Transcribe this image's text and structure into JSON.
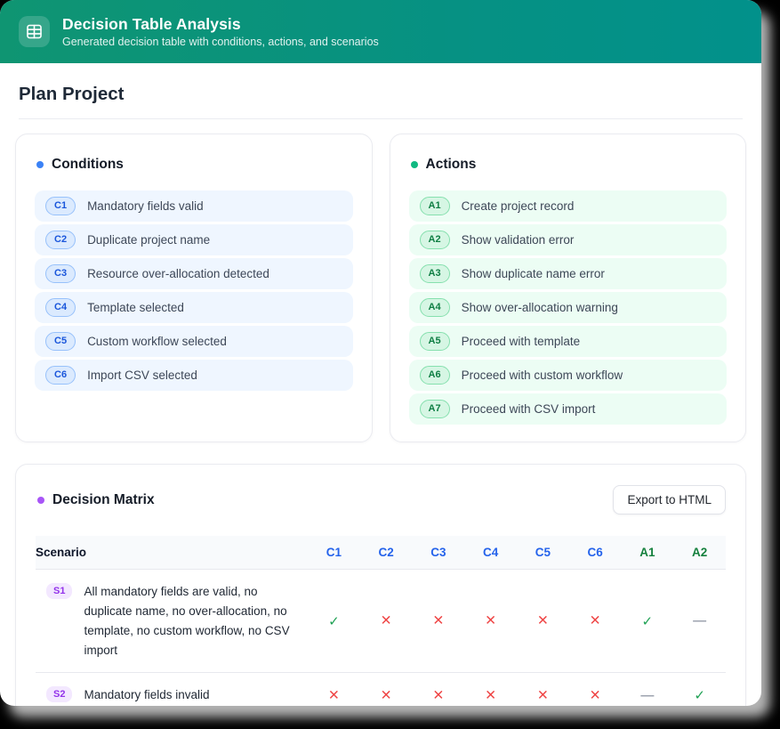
{
  "header": {
    "title": "Decision Table Analysis",
    "subtitle": "Generated decision table with conditions, actions, and scenarios"
  },
  "page_title": "Plan Project",
  "conditions": {
    "title": "Conditions",
    "items": [
      {
        "id": "C1",
        "label": "Mandatory fields valid"
      },
      {
        "id": "C2",
        "label": "Duplicate project name"
      },
      {
        "id": "C3",
        "label": "Resource over-allocation detected"
      },
      {
        "id": "C4",
        "label": "Template selected"
      },
      {
        "id": "C5",
        "label": "Custom workflow selected"
      },
      {
        "id": "C6",
        "label": "Import CSV selected"
      }
    ]
  },
  "actions": {
    "title": "Actions",
    "items": [
      {
        "id": "A1",
        "label": "Create project record"
      },
      {
        "id": "A2",
        "label": "Show validation error"
      },
      {
        "id": "A3",
        "label": "Show duplicate name error"
      },
      {
        "id": "A4",
        "label": "Show over-allocation warning"
      },
      {
        "id": "A5",
        "label": "Proceed with template"
      },
      {
        "id": "A6",
        "label": "Proceed with custom workflow"
      },
      {
        "id": "A7",
        "label": "Proceed with CSV import"
      }
    ]
  },
  "matrix": {
    "title": "Decision Matrix",
    "export_button": "Export to HTML",
    "columns": [
      "Scenario",
      "C1",
      "C2",
      "C3",
      "C4",
      "C5",
      "C6",
      "A1",
      "A2"
    ],
    "rows": [
      {
        "id": "S1",
        "label": "All mandatory fields are valid, no duplicate name, no over-allocation, no template, no custom workflow, no CSV import",
        "values": [
          "check",
          "cross",
          "cross",
          "cross",
          "cross",
          "cross",
          "check",
          "dash"
        ]
      },
      {
        "id": "S2",
        "label": "Mandatory fields invalid",
        "values": [
          "cross",
          "cross",
          "cross",
          "cross",
          "cross",
          "cross",
          "dash",
          "check"
        ]
      }
    ]
  },
  "symbols": {
    "check": "✓",
    "cross": "✕",
    "dash": "—"
  },
  "colors": {
    "header_gradient_start": "#0F9572",
    "header_gradient_end": "#02918B",
    "condition_accent": "#2563EB",
    "action_accent": "#15803D",
    "matrix_accent": "#A855F7",
    "check": "#1FA154",
    "cross": "#EF4444",
    "dash": "#9CA3AF"
  }
}
